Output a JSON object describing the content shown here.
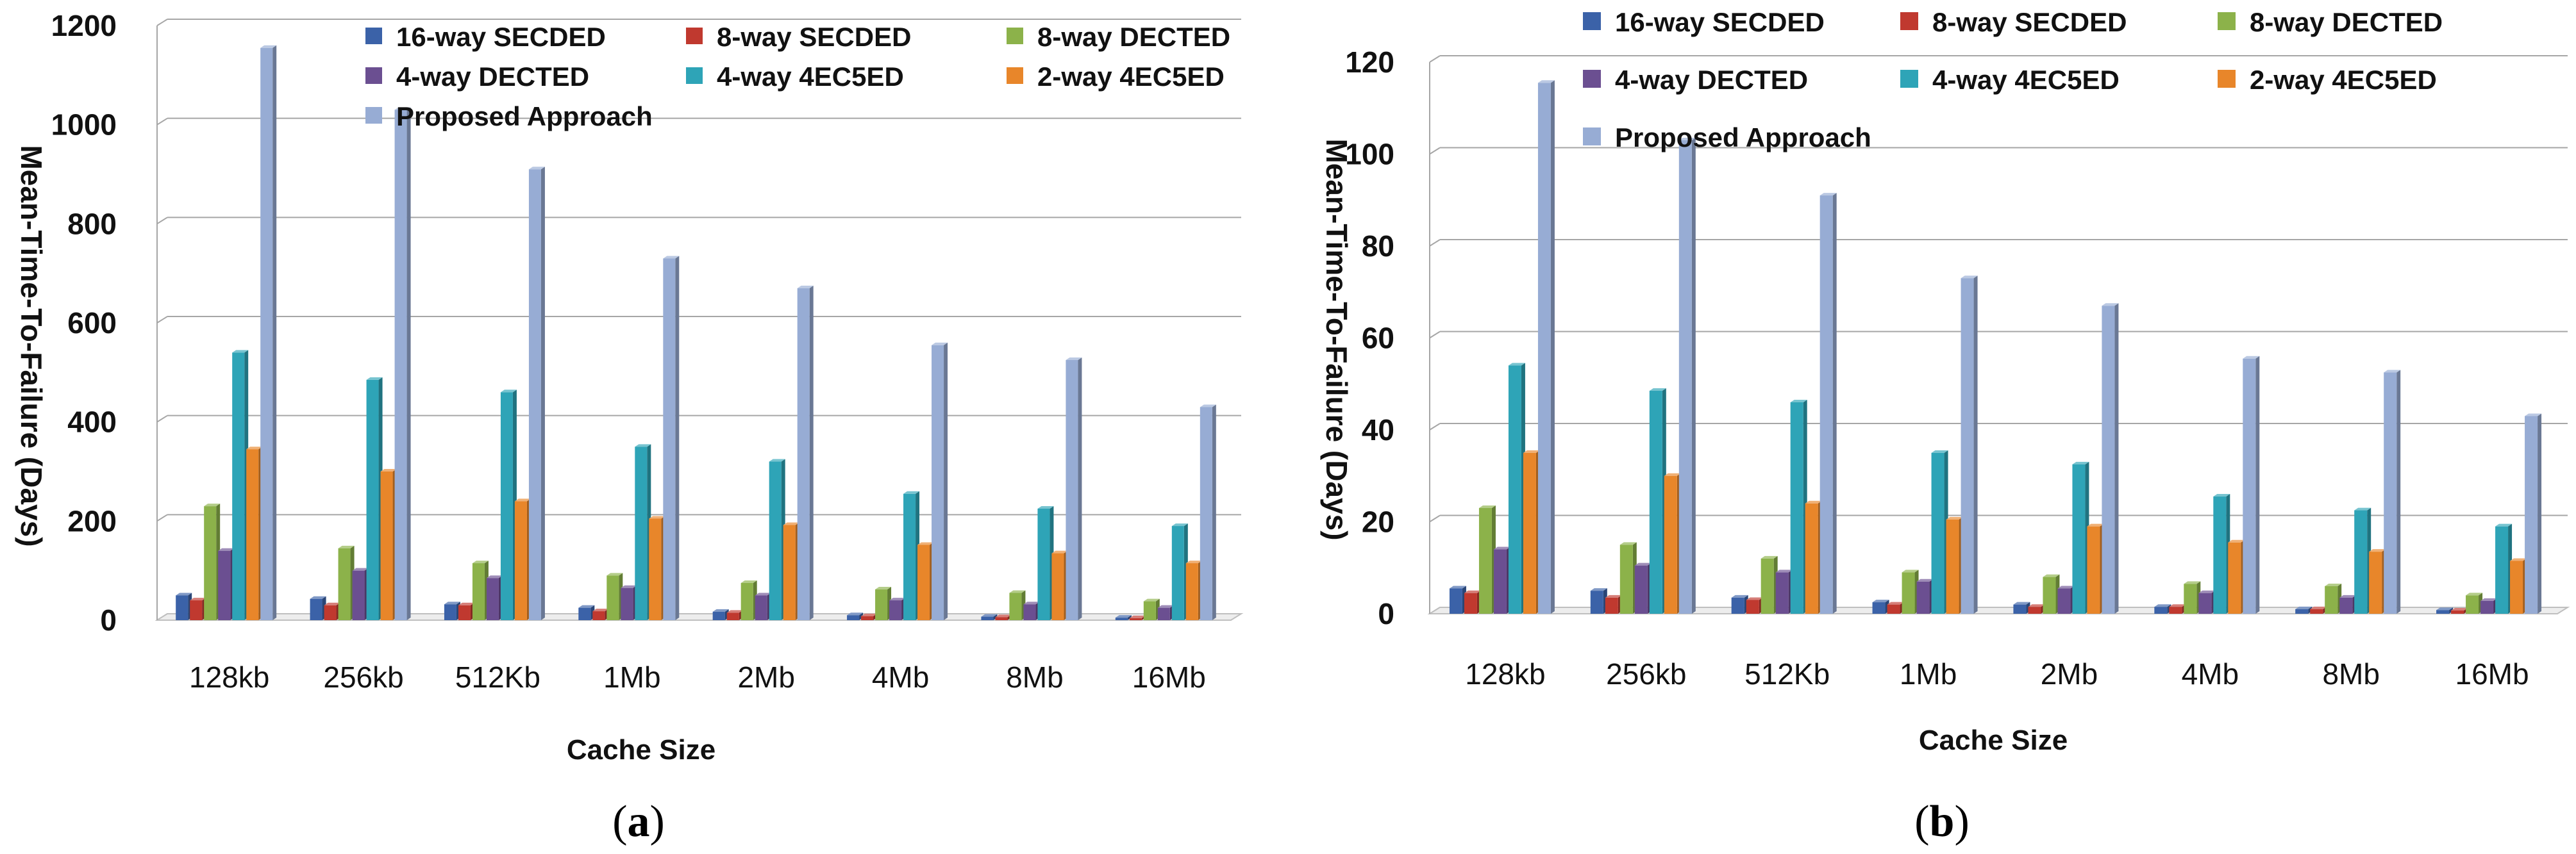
{
  "chart_data": [
    {
      "type": "bar",
      "panel_label": "a",
      "xlabel": "Cache Size",
      "ylabel": "Mean-Time-To-Failure (Days)",
      "ylim": [
        0,
        1200
      ],
      "yticks": [
        0,
        200,
        400,
        600,
        800,
        1000,
        1200
      ],
      "grid": true,
      "legend_position": "top-center",
      "categories": [
        "128kb",
        "256kb",
        "512Kb",
        "1Mb",
        "2Mb",
        "4Mb",
        "8Mb",
        "16Mb"
      ],
      "series": [
        {
          "name": "16-way SECDED",
          "color": "#3b62a8",
          "values": [
            50,
            43,
            32,
            25,
            17,
            10,
            7,
            5
          ]
        },
        {
          "name": "8-way SECDED",
          "color": "#c0392f",
          "values": [
            40,
            30,
            30,
            18,
            15,
            8,
            6,
            4
          ]
        },
        {
          "name": "8-way DECTED",
          "color": "#8cb24a",
          "values": [
            230,
            145,
            115,
            90,
            75,
            62,
            55,
            38
          ]
        },
        {
          "name": "4-way DECTED",
          "color": "#6b4f91",
          "values": [
            140,
            100,
            85,
            65,
            50,
            40,
            32,
            25
          ]
        },
        {
          "name": "4-way 4EC5ED",
          "color": "#2ea4b7",
          "values": [
            540,
            485,
            460,
            350,
            320,
            255,
            225,
            190
          ]
        },
        {
          "name": "2-way 4EC5ED",
          "color": "#e8862a",
          "values": [
            345,
            300,
            240,
            205,
            192,
            152,
            135,
            115
          ]
        },
        {
          "name": "Proposed Approach",
          "color": "#97acd4",
          "values": [
            1155,
            1030,
            910,
            730,
            670,
            555,
            525,
            430
          ]
        }
      ]
    },
    {
      "type": "bar",
      "panel_label": "b",
      "xlabel": "Cache Size",
      "ylabel": "Mean-Time-To-Failure (Days)",
      "ylim": [
        0,
        120
      ],
      "yticks": [
        0,
        20,
        40,
        60,
        80,
        100,
        120
      ],
      "grid": true,
      "legend_position": "top-center",
      "categories": [
        "128kb",
        "256kb",
        "512Kb",
        "1Mb",
        "2Mb",
        "4Mb",
        "8Mb",
        "16Mb"
      ],
      "series": [
        {
          "name": "16-way SECDED",
          "color": "#3b62a8",
          "values": [
            5.5,
            5,
            3.5,
            2.5,
            2,
            1.5,
            1,
            0.8
          ]
        },
        {
          "name": "8-way SECDED",
          "color": "#c0392f",
          "values": [
            4.5,
            3.5,
            3,
            2,
            1.5,
            1.5,
            1,
            0.7
          ]
        },
        {
          "name": "8-way DECTED",
          "color": "#8cb24a",
          "values": [
            23,
            15,
            12,
            9,
            8,
            6.5,
            6,
            4
          ]
        },
        {
          "name": "4-way DECTED",
          "color": "#6b4f91",
          "values": [
            14,
            10.5,
            9,
            7,
            5.5,
            4.5,
            3.5,
            2.8
          ]
        },
        {
          "name": "4-way 4EC5ED",
          "color": "#2ea4b7",
          "values": [
            54,
            48.5,
            46,
            35,
            32.5,
            25.5,
            22.5,
            19
          ]
        },
        {
          "name": "2-way 4EC5ED",
          "color": "#e8862a",
          "values": [
            35,
            30,
            24,
            20.5,
            19,
            15.5,
            13.5,
            11.5
          ]
        },
        {
          "name": "Proposed Approach",
          "color": "#97acd4",
          "values": [
            115.5,
            103,
            91,
            73,
            67,
            55.5,
            52.5,
            43
          ]
        }
      ]
    }
  ]
}
